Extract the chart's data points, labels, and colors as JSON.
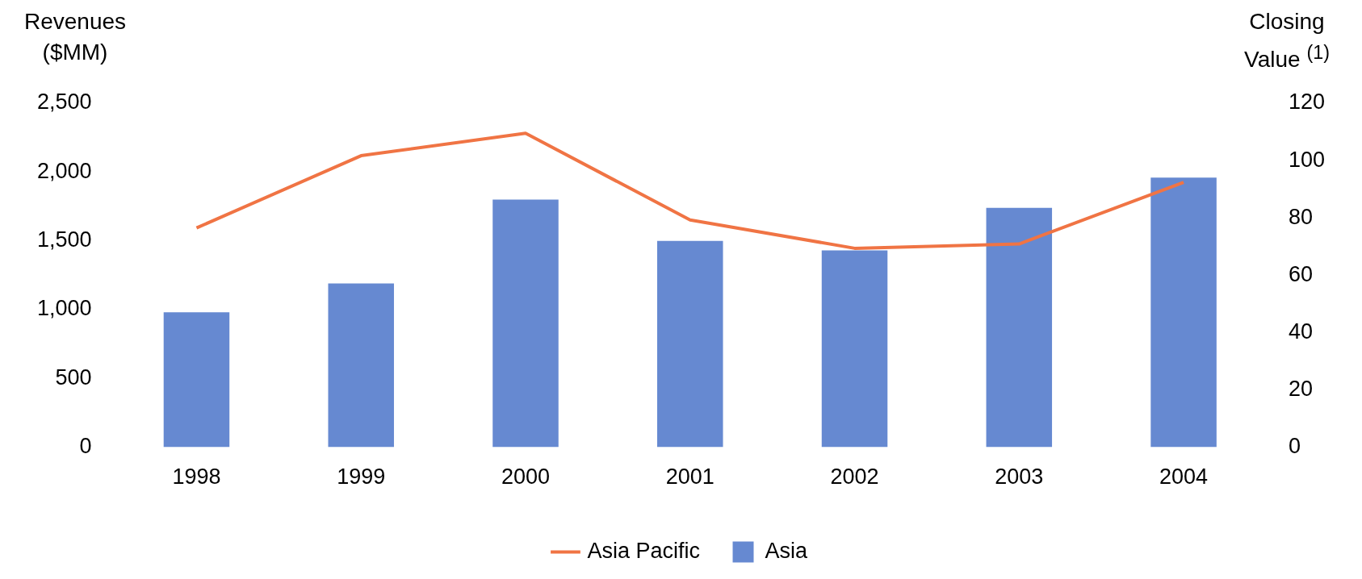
{
  "chart_data": {
    "type": "bar",
    "categories": [
      "1998",
      "1999",
      "2000",
      "2001",
      "2002",
      "2003",
      "2004"
    ],
    "series": [
      {
        "name": "Asia",
        "color": "#6689d1",
        "values": [
          980,
          1190,
          1800,
          1500,
          1430,
          1740,
          1960
        ]
      },
      {
        "name": "Asia Pacific",
        "type": "line",
        "axis": "y2",
        "color": "#f07444",
        "values": [
          76.5,
          101.7,
          109.5,
          79.3,
          69.4,
          70.9,
          92.4
        ]
      }
    ],
    "ylabel": "Revenues ($MM)",
    "y2label": "Closing Value $^{(1)}$",
    "ylim": [
      0,
      2500
    ],
    "yticks": [
      {
        "value": 0,
        "label": "0"
      },
      {
        "value": 500,
        "label": "500"
      },
      {
        "value": 1000,
        "label": "1,000"
      },
      {
        "value": 1500,
        "label": "1,500"
      },
      {
        "value": 2000,
        "label": "2,000"
      },
      {
        "value": 2500,
        "label": "2,500"
      }
    ],
    "y2lim": [
      0,
      120
    ],
    "y2ticks": [
      0,
      20,
      40,
      60,
      80,
      100,
      120
    ],
    "grid": false,
    "legend": "bottom",
    "marker": "none"
  }
}
